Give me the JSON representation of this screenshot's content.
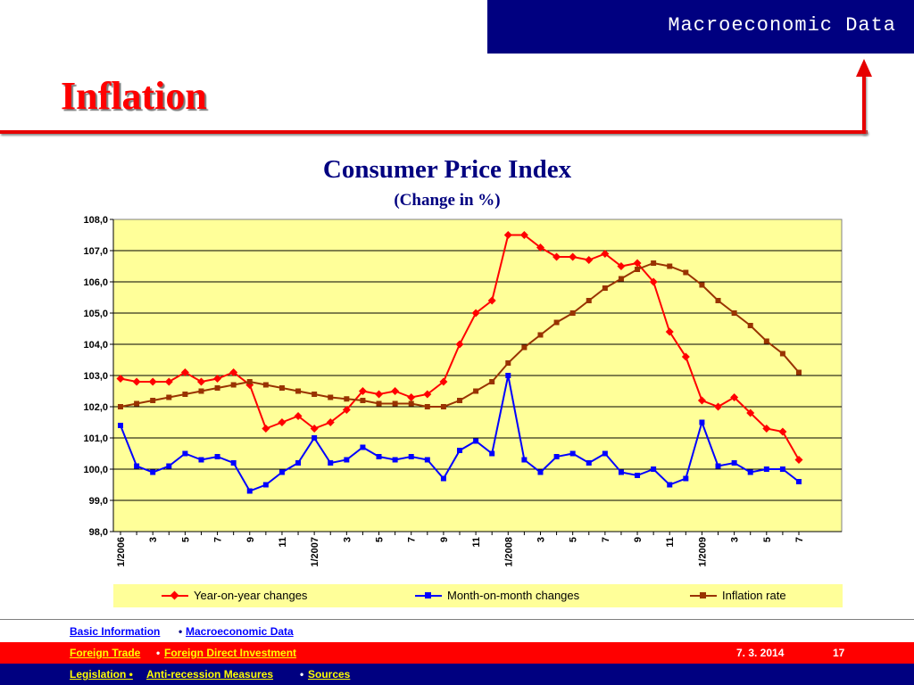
{
  "header": {
    "section_title": "Macroeconomic Data",
    "page_title": "Inflation"
  },
  "colors": {
    "accent_red": "#e60000",
    "navy": "#000080",
    "plot_bg": "#ffff99",
    "yoy": "#ff0000",
    "mom": "#0000ff",
    "inflation": "#993300"
  },
  "chart_data": {
    "type": "line",
    "title": "Consumer Price Index",
    "subtitle": "(Change in %)",
    "ylim": [
      98,
      108
    ],
    "y_ticks": [
      "98,0",
      "99,0",
      "100,0",
      "101,0",
      "102,0",
      "103,0",
      "104,0",
      "105,0",
      "106,0",
      "107,0",
      "108,0"
    ],
    "x_tick_labels": [
      "1/2006",
      "",
      "3",
      "",
      "5",
      "",
      "7",
      "",
      "9",
      "",
      "11",
      "",
      "1/2007",
      "",
      "3",
      "",
      "5",
      "",
      "7",
      "",
      "9",
      "",
      "11",
      "",
      "1/2008",
      "",
      "3",
      "",
      "5",
      "",
      "7",
      "",
      "9",
      "",
      "11",
      "",
      "1/2009",
      "",
      "3",
      "",
      "5",
      "",
      "7"
    ],
    "grid": "horizontal",
    "legend_position": "bottom",
    "series": [
      {
        "name": "Year-on-year changes",
        "color": "#ff0000",
        "marker": "diamond",
        "values": [
          102.9,
          102.8,
          102.8,
          102.8,
          103.1,
          102.8,
          102.9,
          103.1,
          102.7,
          101.3,
          101.5,
          101.7,
          101.3,
          101.5,
          101.9,
          102.5,
          102.4,
          102.5,
          102.3,
          102.4,
          102.8,
          104.0,
          105.0,
          105.4,
          107.5,
          107.5,
          107.1,
          106.8,
          106.8,
          106.7,
          106.9,
          106.5,
          106.6,
          106.0,
          104.4,
          103.6,
          102.2,
          102.0,
          102.3,
          101.8,
          101.3,
          101.2,
          100.3
        ]
      },
      {
        "name": "Month-on-month changes",
        "color": "#0000ff",
        "marker": "square",
        "values": [
          101.4,
          100.1,
          99.9,
          100.1,
          100.5,
          100.3,
          100.4,
          100.2,
          99.3,
          99.5,
          99.9,
          100.2,
          101.0,
          100.2,
          100.3,
          100.7,
          100.4,
          100.3,
          100.4,
          100.3,
          99.7,
          100.6,
          100.9,
          100.5,
          103.0,
          100.3,
          99.9,
          100.4,
          100.5,
          100.2,
          100.5,
          99.9,
          99.8,
          100.0,
          99.5,
          99.7,
          101.5,
          100.1,
          100.2,
          99.9,
          100.0,
          100.0,
          99.6
        ]
      },
      {
        "name": "Inflation rate",
        "color": "#993300",
        "marker": "square",
        "values": [
          102.0,
          102.1,
          102.2,
          102.3,
          102.4,
          102.5,
          102.6,
          102.7,
          102.8,
          102.7,
          102.6,
          102.5,
          102.4,
          102.3,
          102.25,
          102.2,
          102.1,
          102.1,
          102.1,
          102.0,
          102.0,
          102.2,
          102.5,
          102.8,
          103.4,
          103.9,
          104.3,
          104.7,
          105.0,
          105.4,
          105.8,
          106.1,
          106.4,
          106.6,
          106.5,
          106.3,
          105.9,
          105.4,
          105.0,
          104.6,
          104.1,
          103.7,
          103.1
        ]
      }
    ]
  },
  "footer": {
    "row1": {
      "link1": "Basic Information",
      "sep1": "•",
      "link2": "Macroeconomic Data "
    },
    "row2": {
      "link1": "Foreign Trade ",
      "sep1": "•",
      "link2": "Foreign Direct Investment",
      "date": "7. 3. 2014",
      "page": "17"
    },
    "row3": {
      "link1": "Legislation • ",
      "link2": "Anti-recession Measures ",
      "sep1": "•",
      "link3": "Sources"
    }
  }
}
